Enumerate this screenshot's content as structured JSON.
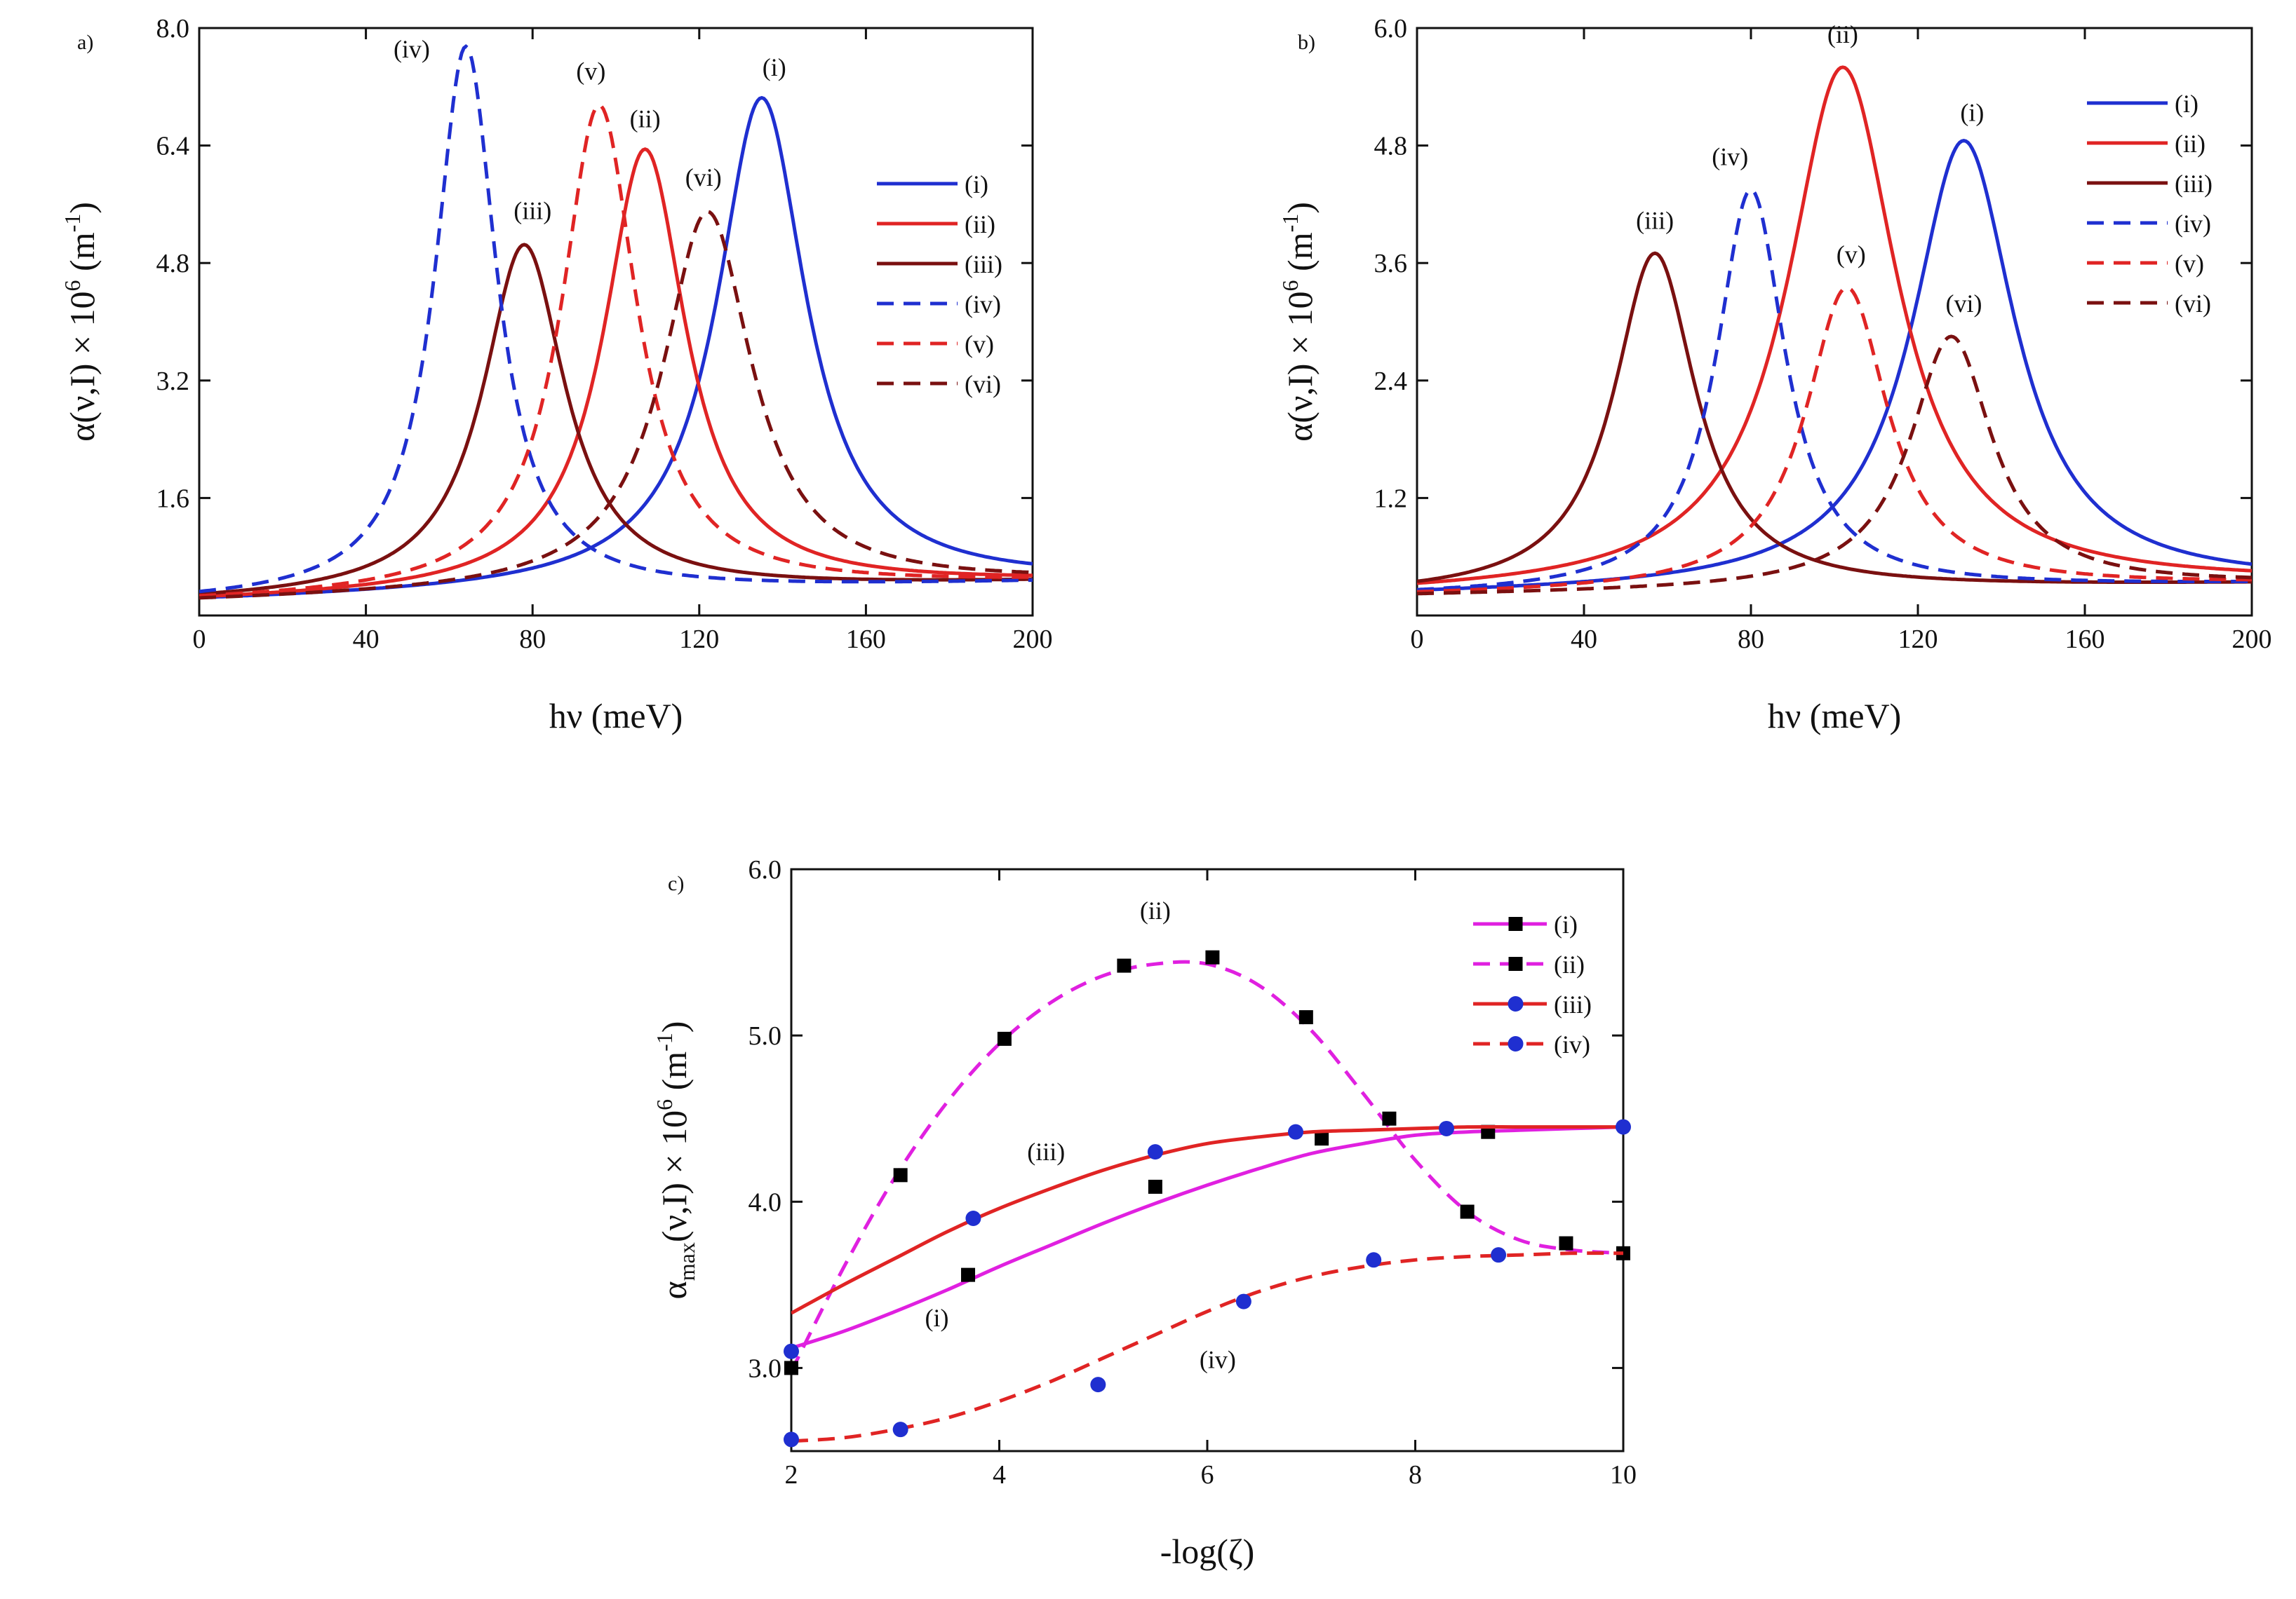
{
  "chart_data": [
    {
      "panel_label": "a)",
      "type": "line",
      "xlabel": "hν (meV)",
      "ylabel_main": "α(ν,I) × 10",
      "ylabel_exp": "6",
      "ylabel_unit": " (m",
      "ylabel_unit_exp": "-1",
      "ylabel_close": ")",
      "xlim": [
        0,
        200
      ],
      "ylim": [
        0,
        8.0
      ],
      "xticks": [
        0,
        40,
        80,
        120,
        160,
        200
      ],
      "xtick_labels": [
        "0",
        "40",
        "80",
        "120",
        "160",
        "200"
      ],
      "yticks": [
        1.6,
        3.2,
        4.8,
        6.4,
        8.0
      ],
      "ytick_labels": [
        "1.6",
        "3.2",
        "4.8",
        "6.4",
        "8.0"
      ],
      "series": [
        {
          "name": "(i)",
          "color": "#1f2fd0",
          "dash": false,
          "shape": {
            "peak_x": 135,
            "peak_y": 7.05,
            "width": 13,
            "base_left": 0.18,
            "base_right": 0.45
          }
        },
        {
          "name": "(ii)",
          "color": "#e02424",
          "dash": false,
          "shape": {
            "peak_x": 107,
            "peak_y": 6.35,
            "width": 12,
            "base_left": 0.18,
            "base_right": 0.45
          }
        },
        {
          "name": "(iii)",
          "color": "#7a1010",
          "dash": false,
          "shape": {
            "peak_x": 78,
            "peak_y": 5.05,
            "width": 12,
            "base_left": 0.18,
            "base_right": 0.45
          }
        },
        {
          "name": "(iv)",
          "color": "#1f2fd0",
          "dash": true,
          "shape": {
            "peak_x": 64,
            "peak_y": 7.75,
            "width": 9,
            "base_left": 0.18,
            "base_right": 0.45
          }
        },
        {
          "name": "(v)",
          "color": "#e02424",
          "dash": true,
          "shape": {
            "peak_x": 96,
            "peak_y": 6.95,
            "width": 11,
            "base_left": 0.18,
            "base_right": 0.45
          }
        },
        {
          "name": "(vi)",
          "color": "#7a1010",
          "dash": true,
          "shape": {
            "peak_x": 122,
            "peak_y": 5.5,
            "width": 13,
            "base_left": 0.18,
            "base_right": 0.45
          }
        }
      ],
      "annotations": [
        {
          "text": "(iv)",
          "x": 51,
          "y": 7.6
        },
        {
          "text": "(v)",
          "x": 94,
          "y": 7.3
        },
        {
          "text": "(ii)",
          "x": 107,
          "y": 6.65
        },
        {
          "text": "(i)",
          "x": 138,
          "y": 7.35
        },
        {
          "text": "(vi)",
          "x": 121,
          "y": 5.85
        },
        {
          "text": "(iii)",
          "x": 80,
          "y": 5.4
        }
      ],
      "legend": [
        "(i)",
        "(ii)",
        "(iii)",
        "(iv)",
        "(v)",
        "(vi)"
      ],
      "legend_position": "right"
    },
    {
      "panel_label": "b)",
      "type": "line",
      "xlabel": "hν (meV)",
      "ylabel_main": "α(ν,I) × 10",
      "ylabel_exp": "6",
      "ylabel_unit": " (m",
      "ylabel_unit_exp": "-1",
      "ylabel_close": ")",
      "xlim": [
        0,
        200
      ],
      "ylim": [
        0,
        6.0
      ],
      "xticks": [
        0,
        40,
        80,
        120,
        160,
        200
      ],
      "xtick_labels": [
        "0",
        "40",
        "80",
        "120",
        "160",
        "200"
      ],
      "yticks": [
        1.2,
        2.4,
        3.6,
        4.8,
        6.0
      ],
      "ytick_labels": [
        "1.2",
        "2.4",
        "3.6",
        "4.8",
        "6.0"
      ],
      "series": [
        {
          "name": "(i)",
          "color": "#1f2fd0",
          "dash": false,
          "shape": {
            "peak_x": 131,
            "peak_y": 4.85,
            "width": 15,
            "base_left": 0.2,
            "base_right": 0.32
          }
        },
        {
          "name": "(ii)",
          "color": "#e02424",
          "dash": false,
          "shape": {
            "peak_x": 102,
            "peak_y": 5.6,
            "width": 16,
            "base_left": 0.2,
            "base_right": 0.32
          }
        },
        {
          "name": "(iii)",
          "color": "#7a1010",
          "dash": false,
          "shape": {
            "peak_x": 57,
            "peak_y": 3.7,
            "width": 12,
            "base_left": 0.2,
            "base_right": 0.32
          }
        },
        {
          "name": "(iv)",
          "color": "#1f2fd0",
          "dash": true,
          "shape": {
            "peak_x": 80,
            "peak_y": 4.35,
            "width": 10,
            "base_left": 0.2,
            "base_right": 0.32
          }
        },
        {
          "name": "(v)",
          "color": "#e02424",
          "dash": true,
          "shape": {
            "peak_x": 103,
            "peak_y": 3.35,
            "width": 12,
            "base_left": 0.2,
            "base_right": 0.32
          }
        },
        {
          "name": "(vi)",
          "color": "#7a1010",
          "dash": true,
          "shape": {
            "peak_x": 128,
            "peak_y": 2.85,
            "width": 12,
            "base_left": 0.2,
            "base_right": 0.32
          }
        }
      ],
      "annotations": [
        {
          "text": "(iv)",
          "x": 75,
          "y": 4.6
        },
        {
          "text": "(ii)",
          "x": 102,
          "y": 5.85
        },
        {
          "text": "(i)",
          "x": 133,
          "y": 5.05
        },
        {
          "text": "(iii)",
          "x": 57,
          "y": 3.95
        },
        {
          "text": "(v)",
          "x": 104,
          "y": 3.6
        },
        {
          "text": "(vi)",
          "x": 131,
          "y": 3.1
        }
      ],
      "legend": [
        "(i)",
        "(ii)",
        "(iii)",
        "(iv)",
        "(v)",
        "(vi)"
      ],
      "legend_position": "top-right"
    },
    {
      "panel_label": "c)",
      "type": "line",
      "xlabel": "-log(ζ)",
      "ylabel_main": "α",
      "ylabel_sub": "max",
      "ylabel_rest": "(ν,I) × 10",
      "ylabel_exp": "6",
      "ylabel_unit": " (m",
      "ylabel_unit_exp": "-1",
      "ylabel_close": ")",
      "xlim": [
        2,
        10
      ],
      "ylim": [
        2.5,
        6.0
      ],
      "xticks": [
        2,
        4,
        6,
        8,
        10
      ],
      "xtick_labels": [
        "2",
        "4",
        "6",
        "8",
        "10"
      ],
      "yticks": [
        3.0,
        4.0,
        5.0,
        6.0
      ],
      "ytick_labels": [
        "3.0",
        "4.0",
        "5.0",
        "6.0"
      ],
      "series": [
        {
          "name": "(i)",
          "color": "#e020e0",
          "dash": false,
          "marker": "square",
          "marker_color": "#000000",
          "x": [
            2,
            2.5,
            3,
            3.5,
            4,
            4.5,
            5,
            5.5,
            6,
            6.5,
            7,
            7.5,
            8,
            8.5,
            9,
            9.5,
            10
          ],
          "y": [
            3.12,
            3.22,
            3.34,
            3.47,
            3.61,
            3.74,
            3.87,
            3.99,
            4.1,
            4.2,
            4.29,
            4.35,
            4.4,
            4.42,
            4.43,
            4.44,
            4.45
          ],
          "points_x": [
            3.7,
            5.5,
            7.1,
            8.7
          ],
          "points_y": [
            3.56,
            4.09,
            4.38,
            4.42
          ]
        },
        {
          "name": "(ii)",
          "color": "#e020e0",
          "dash": true,
          "marker": "square",
          "marker_color": "#000000",
          "x": [
            2,
            2.5,
            3,
            3.5,
            4,
            4.5,
            5,
            5.5,
            6,
            6.5,
            7,
            7.5,
            8,
            8.5,
            9,
            9.5,
            10
          ],
          "y": [
            2.98,
            3.6,
            4.15,
            4.6,
            4.95,
            5.2,
            5.36,
            5.43,
            5.43,
            5.3,
            5.03,
            4.65,
            4.25,
            3.94,
            3.77,
            3.71,
            3.69
          ],
          "points_x": [
            2,
            3.05,
            4.05,
            5.2,
            6.05,
            6.95,
            7.75,
            8.5,
            9.45,
            10
          ],
          "points_y": [
            3.0,
            4.16,
            4.98,
            5.42,
            5.47,
            5.11,
            4.5,
            3.94,
            3.75,
            3.69
          ]
        },
        {
          "name": "(iii)",
          "color": "#e02424",
          "dash": false,
          "marker": "circle",
          "marker_color": "#1f2fd0",
          "x": [
            2,
            2.5,
            3,
            3.5,
            4,
            4.5,
            5,
            5.5,
            6,
            6.5,
            7,
            7.5,
            8,
            8.5,
            9,
            9.5,
            10
          ],
          "y": [
            3.33,
            3.5,
            3.66,
            3.82,
            3.96,
            4.08,
            4.19,
            4.28,
            4.35,
            4.39,
            4.42,
            4.43,
            4.44,
            4.45,
            4.45,
            4.45,
            4.45
          ],
          "points_x": [
            2,
            3.75,
            5.5,
            6.85,
            8.3,
            10
          ],
          "points_y": [
            3.1,
            3.9,
            4.3,
            4.42,
            4.44,
            4.45
          ]
        },
        {
          "name": "(iv)",
          "color": "#e02424",
          "dash": true,
          "marker": "circle",
          "marker_color": "#1f2fd0",
          "x": [
            2,
            2.5,
            3,
            3.5,
            4,
            4.5,
            5,
            5.5,
            6,
            6.5,
            7,
            7.5,
            8,
            8.5,
            9,
            9.5,
            10
          ],
          "y": [
            2.56,
            2.58,
            2.63,
            2.7,
            2.8,
            2.92,
            3.06,
            3.2,
            3.34,
            3.46,
            3.55,
            3.61,
            3.65,
            3.67,
            3.68,
            3.69,
            3.69
          ],
          "points_x": [
            2,
            3.05,
            4.95,
            6.35,
            7.6,
            8.8
          ],
          "points_y": [
            2.57,
            2.63,
            2.9,
            3.4,
            3.65,
            3.68
          ]
        }
      ],
      "annotations": [
        {
          "text": "(ii)",
          "x": 5.5,
          "y": 5.7
        },
        {
          "text": "(iii)",
          "x": 4.45,
          "y": 4.25
        },
        {
          "text": "(i)",
          "x": 3.4,
          "y": 3.25
        },
        {
          "text": "(iv)",
          "x": 6.1,
          "y": 3.0
        }
      ],
      "legend": [
        "(i)",
        "(ii)",
        "(iii)",
        "(iv)"
      ],
      "legend_position": "top-right"
    }
  ]
}
